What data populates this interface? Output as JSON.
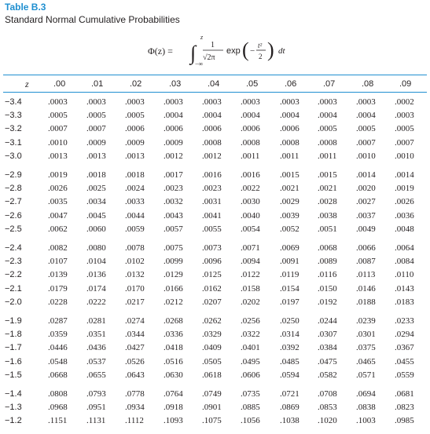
{
  "table": {
    "label": "Table B.3",
    "caption": "Standard Normal Cumulative Probabilities",
    "formula": {
      "lhs": "Φ(z) =",
      "upper_limit": "z",
      "lower_limit": "−∞",
      "fraction_num": "1",
      "fraction_den": "√2π",
      "exp": "exp",
      "inner_num": "t²",
      "inner_den": "2",
      "minus": "−",
      "dt": "dt"
    },
    "z_header": "z",
    "columns": [
      ".00",
      ".01",
      ".02",
      ".03",
      ".04",
      ".05",
      ".06",
      ".07",
      ".08",
      ".09"
    ],
    "groups": [
      [
        {
          "z": "−3.4",
          "v": [
            ".0003",
            ".0003",
            ".0003",
            ".0003",
            ".0003",
            ".0003",
            ".0003",
            ".0003",
            ".0003",
            ".0002"
          ]
        },
        {
          "z": "−3.3",
          "v": [
            ".0005",
            ".0005",
            ".0005",
            ".0004",
            ".0004",
            ".0004",
            ".0004",
            ".0004",
            ".0004",
            ".0003"
          ]
        },
        {
          "z": "−3.2",
          "v": [
            ".0007",
            ".0007",
            ".0006",
            ".0006",
            ".0006",
            ".0006",
            ".0006",
            ".0005",
            ".0005",
            ".0005"
          ]
        },
        {
          "z": "−3.1",
          "v": [
            ".0010",
            ".0009",
            ".0009",
            ".0009",
            ".0008",
            ".0008",
            ".0008",
            ".0008",
            ".0007",
            ".0007"
          ]
        },
        {
          "z": "−3.0",
          "v": [
            ".0013",
            ".0013",
            ".0013",
            ".0012",
            ".0012",
            ".0011",
            ".0011",
            ".0011",
            ".0010",
            ".0010"
          ]
        }
      ],
      [
        {
          "z": "−2.9",
          "v": [
            ".0019",
            ".0018",
            ".0018",
            ".0017",
            ".0016",
            ".0016",
            ".0015",
            ".0015",
            ".0014",
            ".0014"
          ]
        },
        {
          "z": "−2.8",
          "v": [
            ".0026",
            ".0025",
            ".0024",
            ".0023",
            ".0023",
            ".0022",
            ".0021",
            ".0021",
            ".0020",
            ".0019"
          ]
        },
        {
          "z": "−2.7",
          "v": [
            ".0035",
            ".0034",
            ".0033",
            ".0032",
            ".0031",
            ".0030",
            ".0029",
            ".0028",
            ".0027",
            ".0026"
          ]
        },
        {
          "z": "−2.6",
          "v": [
            ".0047",
            ".0045",
            ".0044",
            ".0043",
            ".0041",
            ".0040",
            ".0039",
            ".0038",
            ".0037",
            ".0036"
          ]
        },
        {
          "z": "−2.5",
          "v": [
            ".0062",
            ".0060",
            ".0059",
            ".0057",
            ".0055",
            ".0054",
            ".0052",
            ".0051",
            ".0049",
            ".0048"
          ]
        }
      ],
      [
        {
          "z": "−2.4",
          "v": [
            ".0082",
            ".0080",
            ".0078",
            ".0075",
            ".0073",
            ".0071",
            ".0069",
            ".0068",
            ".0066",
            ".0064"
          ]
        },
        {
          "z": "−2.3",
          "v": [
            ".0107",
            ".0104",
            ".0102",
            ".0099",
            ".0096",
            ".0094",
            ".0091",
            ".0089",
            ".0087",
            ".0084"
          ]
        },
        {
          "z": "−2.2",
          "v": [
            ".0139",
            ".0136",
            ".0132",
            ".0129",
            ".0125",
            ".0122",
            ".0119",
            ".0116",
            ".0113",
            ".0110"
          ]
        },
        {
          "z": "−2.1",
          "v": [
            ".0179",
            ".0174",
            ".0170",
            ".0166",
            ".0162",
            ".0158",
            ".0154",
            ".0150",
            ".0146",
            ".0143"
          ]
        },
        {
          "z": "−2.0",
          "v": [
            ".0228",
            ".0222",
            ".0217",
            ".0212",
            ".0207",
            ".0202",
            ".0197",
            ".0192",
            ".0188",
            ".0183"
          ]
        }
      ],
      [
        {
          "z": "−1.9",
          "v": [
            ".0287",
            ".0281",
            ".0274",
            ".0268",
            ".0262",
            ".0256",
            ".0250",
            ".0244",
            ".0239",
            ".0233"
          ]
        },
        {
          "z": "−1.8",
          "v": [
            ".0359",
            ".0351",
            ".0344",
            ".0336",
            ".0329",
            ".0322",
            ".0314",
            ".0307",
            ".0301",
            ".0294"
          ]
        },
        {
          "z": "−1.7",
          "v": [
            ".0446",
            ".0436",
            ".0427",
            ".0418",
            ".0409",
            ".0401",
            ".0392",
            ".0384",
            ".0375",
            ".0367"
          ]
        },
        {
          "z": "−1.6",
          "v": [
            ".0548",
            ".0537",
            ".0526",
            ".0516",
            ".0505",
            ".0495",
            ".0485",
            ".0475",
            ".0465",
            ".0455"
          ]
        },
        {
          "z": "−1.5",
          "v": [
            ".0668",
            ".0655",
            ".0643",
            ".0630",
            ".0618",
            ".0606",
            ".0594",
            ".0582",
            ".0571",
            ".0559"
          ]
        }
      ],
      [
        {
          "z": "−1.4",
          "v": [
            ".0808",
            ".0793",
            ".0778",
            ".0764",
            ".0749",
            ".0735",
            ".0721",
            ".0708",
            ".0694",
            ".0681"
          ]
        },
        {
          "z": "−1.3",
          "v": [
            ".0968",
            ".0951",
            ".0934",
            ".0918",
            ".0901",
            ".0885",
            ".0869",
            ".0853",
            ".0838",
            ".0823"
          ]
        },
        {
          "z": "−1.2",
          "v": [
            ".1151",
            ".1131",
            ".1112",
            ".1093",
            ".1075",
            ".1056",
            ".1038",
            ".1020",
            ".1003",
            ".0985"
          ]
        }
      ]
    ]
  }
}
